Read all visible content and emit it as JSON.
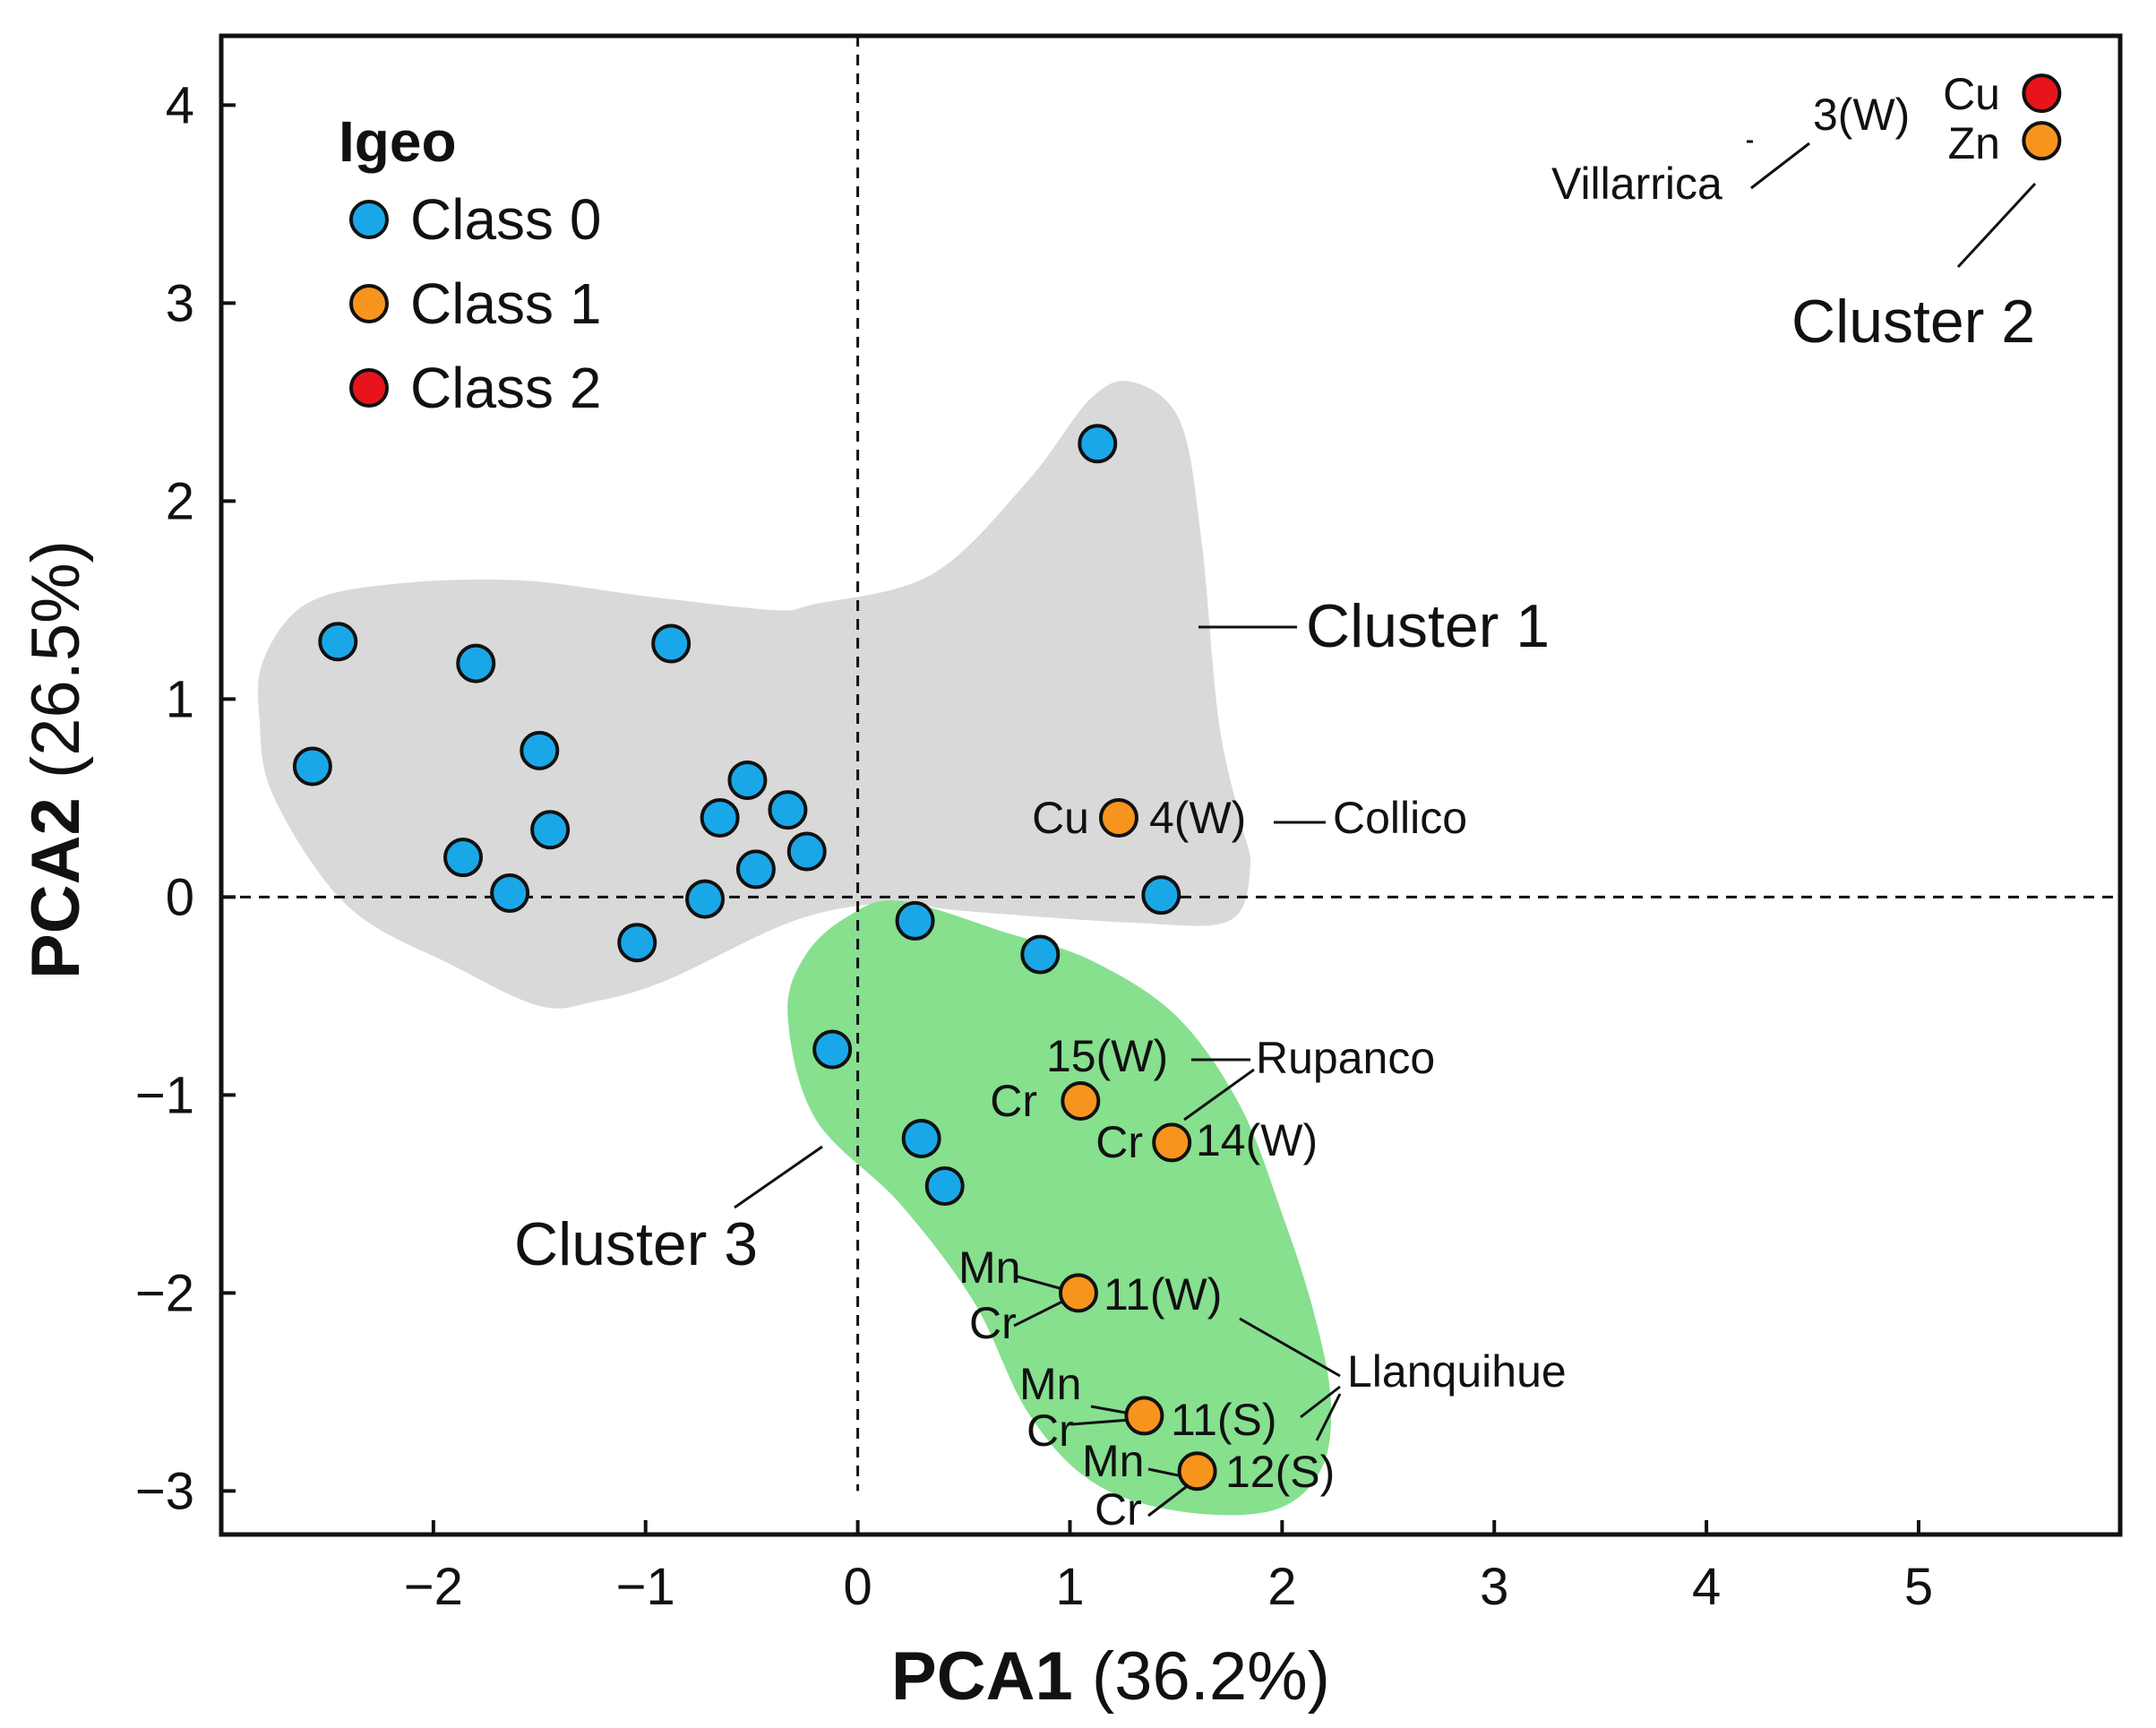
{
  "chart_data": {
    "type": "scatter",
    "title": "",
    "xlabel": {
      "bold": "PCA1",
      "rest": " (36.2%)"
    },
    "ylabel": {
      "bold": "PCA2",
      "rest": " (26.5%)"
    },
    "xlim": [
      -3.0,
      5.95
    ],
    "ylim": [
      -3.22,
      4.35
    ],
    "x_ticks": [
      -2,
      -1,
      0,
      1,
      2,
      3,
      4,
      5
    ],
    "y_ticks": [
      -3,
      -2,
      -1,
      0,
      1,
      2,
      3,
      4
    ],
    "x_tick_labels": [
      "−2",
      "−1",
      "0",
      "1",
      "2",
      "3",
      "4",
      "5"
    ],
    "y_tick_labels": [
      "−3",
      "−2",
      "−1",
      "0",
      "1",
      "2",
      "3",
      "4"
    ],
    "reference_lines": {
      "x": 0,
      "y": 0,
      "style": "dashed"
    },
    "legend": {
      "title": "Igeo",
      "placement": "top-left",
      "entries": [
        {
          "label": "Class 0",
          "color": "#1aa7e8"
        },
        {
          "label": "Class 1",
          "color": "#f7941d"
        },
        {
          "label": "Class 2",
          "color": "#e8141b"
        }
      ]
    },
    "regions": [
      {
        "name": "Cluster 1",
        "color": "#d9d9d9",
        "outline": [
          [
            -2.8,
            1.2
          ],
          [
            -2.6,
            1.48
          ],
          [
            -2.2,
            1.58
          ],
          [
            -1.6,
            1.6
          ],
          [
            -1.0,
            1.52
          ],
          [
            -0.4,
            1.45
          ],
          [
            -0.2,
            1.48
          ],
          [
            0.35,
            1.63
          ],
          [
            0.8,
            2.1
          ],
          [
            1.1,
            2.52
          ],
          [
            1.3,
            2.6
          ],
          [
            1.52,
            2.4
          ],
          [
            1.62,
            1.8
          ],
          [
            1.7,
            0.9
          ],
          [
            1.8,
            0.4
          ],
          [
            1.85,
            0.15
          ],
          [
            1.75,
            -0.12
          ],
          [
            1.3,
            -0.13
          ],
          [
            0.5,
            -0.07
          ],
          [
            0.15,
            -0.03
          ],
          [
            -0.3,
            -0.12
          ],
          [
            -0.9,
            -0.42
          ],
          [
            -1.25,
            -0.53
          ],
          [
            -1.5,
            -0.55
          ],
          [
            -1.9,
            -0.35
          ],
          [
            -2.4,
            -0.05
          ],
          [
            -2.75,
            0.5
          ],
          [
            -2.82,
            0.9
          ]
        ]
      },
      {
        "name": "Cluster 3",
        "color": "#86e08e",
        "outline": [
          [
            0.2,
            -0.02
          ],
          [
            0.7,
            -0.18
          ],
          [
            1.1,
            -0.32
          ],
          [
            1.5,
            -0.6
          ],
          [
            1.8,
            -1.05
          ],
          [
            2.0,
            -1.6
          ],
          [
            2.15,
            -2.1
          ],
          [
            2.23,
            -2.55
          ],
          [
            2.18,
            -2.9
          ],
          [
            1.95,
            -3.1
          ],
          [
            1.5,
            -3.1
          ],
          [
            1.1,
            -2.95
          ],
          [
            0.8,
            -2.6
          ],
          [
            0.55,
            -2.05
          ],
          [
            0.2,
            -1.55
          ],
          [
            -0.2,
            -1.12
          ],
          [
            -0.33,
            -0.6
          ],
          [
            -0.25,
            -0.3
          ],
          [
            -0.05,
            -0.1
          ]
        ]
      }
    ],
    "series": [
      {
        "name": "Class 0",
        "color": "#1aa7e8",
        "points": [
          [
            -2.45,
            1.29
          ],
          [
            -2.57,
            0.66
          ],
          [
            -1.8,
            1.18
          ],
          [
            -1.5,
            0.74
          ],
          [
            -0.88,
            1.28
          ],
          [
            -1.45,
            0.34
          ],
          [
            -1.86,
            0.2
          ],
          [
            -1.64,
            0.02
          ],
          [
            -1.04,
            -0.23
          ],
          [
            -0.72,
            -0.01
          ],
          [
            -0.65,
            0.4
          ],
          [
            -0.52,
            0.59
          ],
          [
            -0.48,
            0.14
          ],
          [
            -0.33,
            0.44
          ],
          [
            -0.24,
            0.23
          ],
          [
            1.13,
            2.29
          ],
          [
            1.43,
            0.01
          ],
          [
            0.27,
            -0.12
          ],
          [
            0.86,
            -0.29
          ],
          [
            -0.12,
            -0.77
          ],
          [
            0.3,
            -1.22
          ],
          [
            0.41,
            -1.46
          ]
        ]
      },
      {
        "name": "Class 1",
        "color": "#f7941d",
        "points": [
          [
            1.23,
            0.4
          ],
          [
            1.05,
            -1.03
          ],
          [
            1.48,
            -1.24
          ],
          [
            1.04,
            -2.0
          ],
          [
            1.35,
            -2.62
          ],
          [
            1.6,
            -2.9
          ],
          [
            5.58,
            3.82
          ]
        ]
      },
      {
        "name": "Class 2",
        "color": "#e8141b",
        "points": [
          [
            5.58,
            4.06
          ]
        ]
      }
    ],
    "annotations": {
      "cluster1": "Cluster 1",
      "cluster2": "Cluster 2",
      "cluster3": "Cluster 3",
      "villarrica": "Villarrica",
      "collico": "Collico",
      "rupanco": "Rupanco",
      "llanquihue": "Llanquihue",
      "s3w": "3(W)",
      "s4w": "4(W)",
      "s15w": "15(W)",
      "s14w": "14(W)",
      "s11w": "11(W)",
      "s11s": "11(S)",
      "s12s": "12(S)",
      "cu_3w": "Cu",
      "zn_3w": "Zn",
      "cu_4w": "Cu",
      "cr_15w": "Cr",
      "cr_14w": "Cr",
      "mn_11w": "Mn",
      "cr_11w": "Cr",
      "mn_11s": "Mn",
      "cr_11s": "Cr",
      "mn_12s": "Mn",
      "cr_12s": "Cr"
    }
  }
}
